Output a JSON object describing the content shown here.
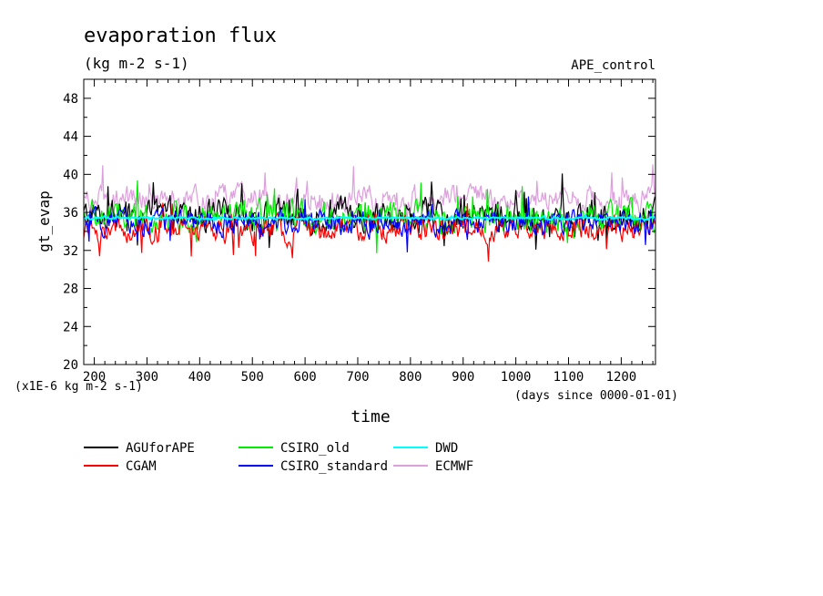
{
  "chart_data": {
    "type": "line",
    "title": "evaporation flux",
    "subtitle": "(kg m-2 s-1)",
    "run_label": "APE_control",
    "xlabel": "time",
    "ylabel": "gt_evap",
    "y_unit_note": "(x1E-6 kg m-2 s-1)",
    "x_unit_note": "(days since 0000-01-01)",
    "xlim": [
      180,
      1265
    ],
    "ylim": [
      20,
      50
    ],
    "x_ticks": [
      200,
      300,
      400,
      500,
      600,
      700,
      800,
      900,
      1000,
      1100,
      1200
    ],
    "y_ticks": [
      20,
      24,
      28,
      32,
      36,
      40,
      44,
      48
    ],
    "grid": false,
    "legend_position": "bottom-left",
    "series": [
      {
        "name": "AGUforAPE",
        "color": "#000000",
        "mean": 35.6,
        "amp": 1.6
      },
      {
        "name": "CGAM",
        "color": "#ff0000",
        "mean": 34.2,
        "amp": 1.3
      },
      {
        "name": "CSIRO_old",
        "color": "#00ee00",
        "mean": 35.5,
        "amp": 1.6
      },
      {
        "name": "CSIRO_standard",
        "color": "#0000ff",
        "mean": 34.9,
        "amp": 1.2
      },
      {
        "name": "DWD",
        "color": "#00ffff",
        "mean": 35.4,
        "amp": 0.12
      },
      {
        "name": "ECMWF",
        "color": "#dda0dd",
        "mean": 37.4,
        "amp": 1.3
      }
    ]
  }
}
